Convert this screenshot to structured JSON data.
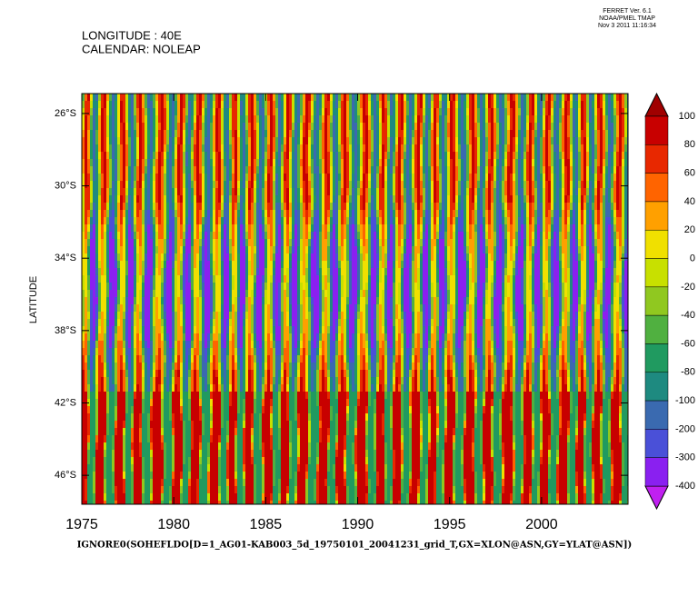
{
  "chart_data": {
    "type": "filled-contour",
    "header": [
      "LONGITUDE : 40E",
      "CALENDAR: NOLEAP"
    ],
    "stamp": [
      "FERRET Ver. 6.1",
      "NOAA/PMEL TMAP",
      "Nov  3 2011 11:16:34"
    ],
    "x_label": "IGNORE0(SOHEFLDO[D=1_AG01-KAB003_5d_19750101_20041231_grid_T,GX=XLON@ASN,GY=YLAT@ASN])",
    "y_label": "LATITUDE",
    "xlim": [
      1975,
      2004.7
    ],
    "xticks": [
      1975,
      1980,
      1985,
      1990,
      1995,
      2000
    ],
    "ylim": [
      -47.6,
      -24.9
    ],
    "yticks": [
      {
        "value": -26,
        "label": "26°S"
      },
      {
        "value": -30,
        "label": "30°S"
      },
      {
        "value": -34,
        "label": "34°S"
      },
      {
        "value": -38,
        "label": "38°S"
      },
      {
        "value": -42,
        "label": "42°S"
      },
      {
        "value": -46,
        "label": "46°S"
      }
    ],
    "colorbar": {
      "levels": [
        100,
        80,
        60,
        40,
        20,
        0,
        -20,
        -40,
        -60,
        -80,
        -100,
        -200,
        -300,
        -400
      ],
      "colors": [
        "#c80000",
        "#e82800",
        "#ff6400",
        "#ffa000",
        "#f0e000",
        "#c8e000",
        "#90c820",
        "#50b040",
        "#209a60",
        "#1e8a80",
        "#3a6ab0",
        "#4a50d8",
        "#8a20f0"
      ],
      "over_color": "#a00000",
      "under_color": "#c020f0"
    }
  }
}
